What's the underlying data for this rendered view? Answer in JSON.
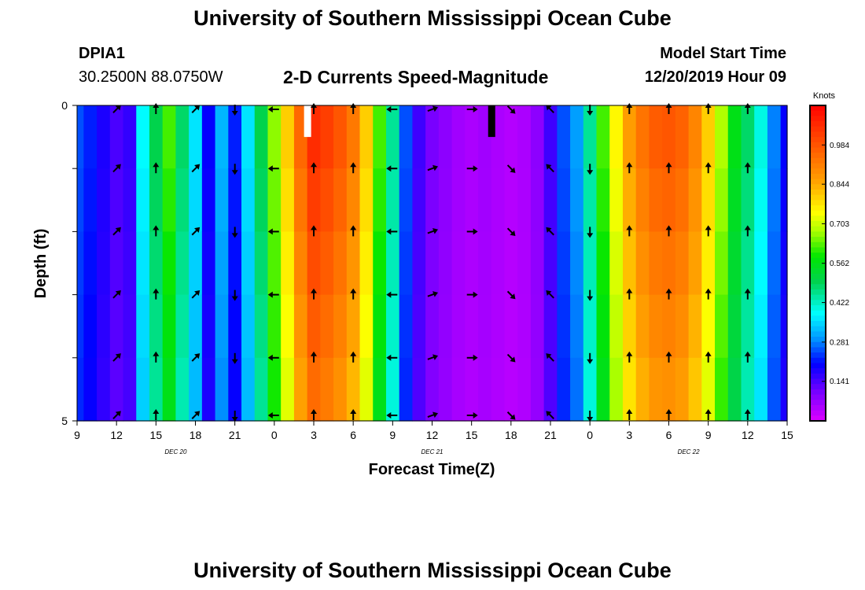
{
  "header": {
    "title_top": "University of Southern Mississippi Ocean Cube",
    "title_bottom": "University of Southern Mississippi Ocean Cube",
    "station_id": "DPIA1",
    "station_coords": "30.2500N 88.0750W",
    "product": "2-D Currents Speed-Magnitude",
    "model_start_label": "Model Start Time",
    "model_start_value": "12/20/2019 Hour 09"
  },
  "chart_data": {
    "type": "heatmap",
    "xlabel": "Forecast Time(Z)",
    "ylabel": "Depth (ft)",
    "x_ticks": [
      "9",
      "12",
      "15",
      "18",
      "21",
      "0",
      "3",
      "6",
      "9",
      "12",
      "15",
      "18",
      "21",
      "0",
      "3",
      "6",
      "9",
      "12",
      "15"
    ],
    "x_hours": [
      0,
      3,
      6,
      9,
      12,
      15,
      18,
      21,
      24,
      27,
      30,
      33,
      36,
      39,
      42,
      45,
      48,
      51,
      54
    ],
    "date_labels": [
      {
        "text": "DEC 20",
        "hour": 7.5
      },
      {
        "text": "DEC 21",
        "hour": 27
      },
      {
        "text": "DEC 22",
        "hour": 46.5
      }
    ],
    "y_ticks": [
      "0",
      "5"
    ],
    "ylim": [
      0,
      5
    ],
    "colorbar": {
      "title": "Knots",
      "ticks": [
        "0.984",
        "0.844",
        "0.703",
        "0.562",
        "0.422",
        "0.281",
        "0.141"
      ],
      "tick_values": [
        0.984,
        0.844,
        0.703,
        0.562,
        0.422,
        0.281,
        0.141
      ],
      "range": [
        0.0,
        1.125
      ]
    },
    "speed_by_hour": [
      0.25,
      0.22,
      0.18,
      0.14,
      0.16,
      0.38,
      0.5,
      0.62,
      0.48,
      0.36,
      0.2,
      0.32,
      0.22,
      0.36,
      0.5,
      0.66,
      0.8,
      0.95,
      1.05,
      1.02,
      0.98,
      0.92,
      0.8,
      0.62,
      0.45,
      0.25,
      0.15,
      0.1,
      0.08,
      0.06,
      0.05,
      0.06,
      0.05,
      0.04,
      0.05,
      0.08,
      0.15,
      0.25,
      0.3,
      0.45,
      0.62,
      0.75,
      0.86,
      0.93,
      0.97,
      0.98,
      0.96,
      0.9,
      0.8,
      0.68,
      0.56,
      0.48,
      0.4,
      0.28,
      0.2
    ],
    "missing_cells": [
      {
        "hour": 17.5,
        "value": "white"
      },
      {
        "hour": 31.5,
        "value": "black"
      }
    ],
    "arrow_hours": [
      3,
      6,
      9,
      12,
      15,
      18,
      21,
      24,
      27,
      30,
      33,
      36,
      39,
      42,
      45,
      48,
      51
    ],
    "arrow_directions_deg": [
      225,
      180,
      225,
      0,
      90,
      180,
      180,
      90,
      250,
      270,
      315,
      135,
      0,
      180,
      180,
      180,
      180
    ],
    "arrow_depths": [
      0,
      1,
      2,
      3,
      4,
      5
    ]
  }
}
